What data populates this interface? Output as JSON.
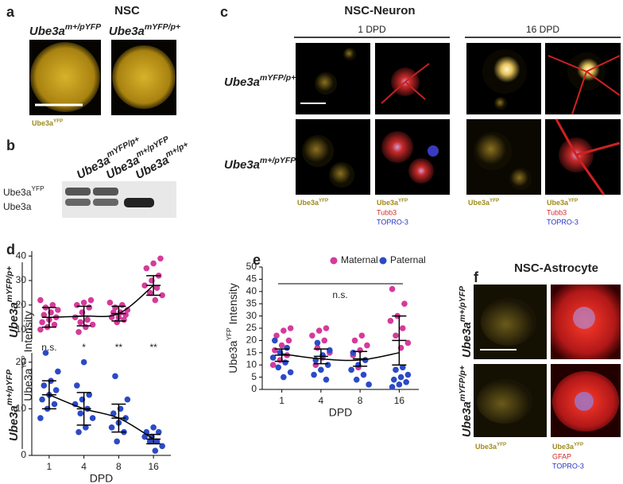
{
  "panel_a": {
    "letter": "a",
    "title": "NSC",
    "genotypes": [
      {
        "base": "Ube3a",
        "sup": "m+/pYFP"
      },
      {
        "base": "Ube3a",
        "sup": "mYFP/p+"
      }
    ],
    "stain": {
      "base": "Ube3a",
      "sup": "YFP"
    }
  },
  "panel_b": {
    "letter": "b",
    "lanes": [
      {
        "base": "Ube3a",
        "sup": "mYFP/p+"
      },
      {
        "base": "Ube3a",
        "sup": "m+/pYFP"
      },
      {
        "base": "Ube3a",
        "sup": "m+/p+"
      }
    ],
    "band_yfp": {
      "base": "Ube3a",
      "sup": "YFP"
    },
    "band_native": "Ube3a"
  },
  "panel_c": {
    "letter": "c",
    "title": "NSC-Neuron",
    "timepoints": [
      "1 DPD",
      "16 DPD"
    ],
    "genotypes": [
      {
        "base": "Ube3a",
        "sup": "mYFP/p+"
      },
      {
        "base": "Ube3a",
        "sup": "m+/pYFP"
      }
    ],
    "stain": {
      "base": "Ube3a",
      "sup": "YFP"
    },
    "marker": "Tubb3",
    "nuclear": "TOPRO-3"
  },
  "panel_f": {
    "letter": "f",
    "title": "NSC-Astrocyte",
    "genotypes": [
      {
        "base": "Ube3a",
        "sup": "m+/pYFP"
      },
      {
        "base": "Ube3a",
        "sup": "mYFP/p+"
      }
    ],
    "stain": {
      "base": "Ube3a",
      "sup": "YFP"
    },
    "marker": "GFAP",
    "nuclear": "TOPRO-3"
  },
  "chart_data": [
    {
      "type": "strip",
      "letter": "d",
      "y_label": {
        "base": "Ube3a",
        "sup": "YFP",
        "rest": " Intensity"
      },
      "genotype": {
        "base": "Ube3a",
        "sup": "mYFP/p+"
      },
      "categories": [
        "1",
        "4",
        "8",
        "16"
      ],
      "ylim": [
        6,
        42
      ],
      "yticks": [
        10,
        20,
        30,
        40
      ],
      "significance": [
        "n.s.",
        "*",
        "**",
        "**"
      ],
      "series": [
        {
          "color": "#d63a9b",
          "points": [
            [
              10,
              11,
              12,
              13,
              14,
              15,
              16,
              17,
              18,
              19,
              20,
              22
            ],
            [
              9,
              11,
              12,
              13,
              14,
              15,
              17,
              19,
              20,
              21,
              22
            ],
            [
              13,
              14,
              15,
              15,
              16,
              17,
              17,
              18,
              19,
              20,
              21
            ],
            [
              22,
              24,
              25,
              27,
              28,
              30,
              32,
              35,
              37,
              39
            ]
          ],
          "mean": [
            15,
            15.5,
            16.5,
            28
          ],
          "sd": [
            4,
            4,
            3,
            4
          ]
        }
      ]
    },
    {
      "type": "strip",
      "genotype": {
        "base": "Ube3a",
        "sup": "m+/pYFP"
      },
      "categories": [
        "1",
        "4",
        "8",
        "16"
      ],
      "ylim": [
        0,
        22
      ],
      "yticks": [
        0,
        10,
        20
      ],
      "x_label": "DPD",
      "series": [
        {
          "color": "#2b4ac7",
          "points": [
            [
              8,
              10,
              11,
              12,
              13,
              14,
              15,
              16,
              18,
              22
            ],
            [
              5,
              6,
              8,
              9,
              10,
              11,
              12,
              13,
              15,
              20
            ],
            [
              3,
              5,
              6,
              7,
              8,
              9,
              10,
              12,
              17
            ],
            [
              1,
              2,
              3,
              3,
              4,
              4,
              5,
              5,
              6
            ]
          ],
          "mean": [
            13,
            10,
            8,
            3.5
          ],
          "sd": [
            3,
            3.5,
            3,
            1
          ]
        }
      ]
    },
    {
      "type": "strip",
      "letter": "e",
      "y_label": {
        "base": "Ube3a",
        "sup": "YFP",
        "rest": " Intensity"
      },
      "categories": [
        "1",
        "4",
        "8",
        "16"
      ],
      "ylim": [
        0,
        50
      ],
      "yticks": [
        0,
        5,
        10,
        15,
        20,
        25,
        30,
        35,
        40,
        45,
        50
      ],
      "x_label": "DPD",
      "annotation": "n.s.",
      "mean": [
        14,
        13.5,
        12.5,
        20
      ],
      "sd": [
        2.5,
        3,
        3,
        10
      ],
      "fit": [
        14.5,
        12.5,
        12,
        15
      ],
      "series": [
        {
          "name": "Maternal",
          "color": "#d63a9b",
          "points": [
            [
              10,
              12,
              14,
              16,
              18,
              20,
              22,
              24,
              25
            ],
            [
              10,
              13,
              15,
              17,
              20,
              22,
              24,
              25
            ],
            [
              9,
              12,
              14,
              16,
              18,
              20,
              22
            ],
            [
              17,
              19,
              22,
              25,
              28,
              30,
              35,
              41
            ]
          ]
        },
        {
          "name": "Paternal",
          "color": "#2b4ac7",
          "points": [
            [
              5,
              7,
              9,
              11,
              13,
              15,
              17,
              20
            ],
            [
              4,
              6,
              8,
              10,
              12,
              14,
              16,
              19
            ],
            [
              2,
              4,
              6,
              8,
              10,
              12,
              15
            ],
            [
              1,
              2,
              3,
              4,
              5,
              6,
              8,
              9
            ]
          ]
        }
      ]
    }
  ]
}
